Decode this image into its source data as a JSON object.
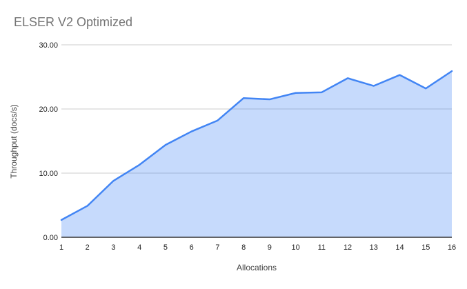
{
  "chart_data": {
    "type": "area",
    "title": "ELSER V2 Optimized",
    "xlabel": "Allocations",
    "ylabel": "Throughput (docs/s)",
    "x": [
      1,
      2,
      3,
      4,
      5,
      6,
      7,
      8,
      9,
      10,
      11,
      12,
      13,
      14,
      15,
      16
    ],
    "x_tick_labels": [
      "1",
      "2",
      "3",
      "4",
      "5",
      "6",
      "7",
      "8",
      "9",
      "10",
      "11",
      "12",
      "13",
      "14",
      "15",
      "16"
    ],
    "series": [
      {
        "name": "Throughput",
        "values": [
          2.7,
          4.9,
          8.8,
          11.3,
          14.4,
          16.5,
          18.2,
          21.7,
          21.5,
          22.5,
          22.6,
          24.8,
          23.6,
          25.3,
          23.2,
          25.9
        ]
      }
    ],
    "ylim": [
      0,
      30
    ],
    "y_ticks": [
      0,
      10,
      20,
      30
    ],
    "y_tick_labels": [
      "0.00",
      "10.00",
      "20.00",
      "30.00"
    ],
    "grid": true,
    "legend": "none",
    "colors": {
      "line": "#4285f4",
      "fill": "rgba(66,133,244,0.30)",
      "gridline": "#cccccc",
      "axis_line": "#333333",
      "tick_label": "#212121",
      "axis_title": "#424242",
      "title": "#757575",
      "background": "#ffffff"
    }
  }
}
